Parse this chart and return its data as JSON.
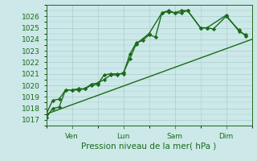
{
  "title": "Pression niveau de la mer( hPa )",
  "ylabel_values": [
    1017,
    1018,
    1019,
    1020,
    1021,
    1022,
    1023,
    1024,
    1025,
    1026
  ],
  "ylim": [
    1016.5,
    1026.8
  ],
  "xlim": [
    0,
    96
  ],
  "x_ticks": [
    12,
    36,
    60,
    84
  ],
  "x_tick_labels": [
    "Ven",
    "Lun",
    "Sam",
    "Dim"
  ],
  "bg_color": "#cce8e8",
  "grid_color": "#aacccc",
  "line_color": "#1a6b1a",
  "line1_x": [
    0,
    3,
    6,
    9,
    12,
    15,
    18,
    21,
    24,
    27,
    30,
    33,
    36,
    39,
    42,
    45,
    48,
    51,
    54,
    57,
    60,
    63,
    66,
    72,
    75,
    84,
    90,
    93
  ],
  "line1_y": [
    1017.2,
    1018.0,
    1018.1,
    1019.6,
    1019.6,
    1019.6,
    1019.7,
    1020.0,
    1020.1,
    1020.9,
    1021.0,
    1021.0,
    1021.0,
    1022.7,
    1023.7,
    1023.9,
    1024.4,
    1024.2,
    1026.3,
    1026.4,
    1026.3,
    1026.3,
    1026.5,
    1025.0,
    1025.0,
    1026.1,
    1024.7,
    1024.4
  ],
  "line2_x": [
    0,
    3,
    6,
    9,
    12,
    15,
    18,
    21,
    24,
    27,
    30,
    33,
    36,
    39,
    42,
    48,
    54,
    57,
    60,
    63,
    66,
    72,
    75,
    78,
    84,
    90,
    93
  ],
  "line2_y": [
    1017.5,
    1018.7,
    1018.8,
    1019.6,
    1019.6,
    1019.7,
    1019.7,
    1020.1,
    1020.2,
    1020.5,
    1020.9,
    1020.9,
    1021.1,
    1022.3,
    1023.6,
    1024.5,
    1026.3,
    1026.5,
    1026.3,
    1026.5,
    1026.5,
    1025.0,
    1025.0,
    1024.9,
    1026.0,
    1024.8,
    1024.3
  ],
  "trend_x": [
    0,
    96
  ],
  "trend_y": [
    1017.5,
    1024.0
  ],
  "marker": "D",
  "markersize": 2.2,
  "linewidth": 1.0,
  "tick_fontsize": 6.5,
  "xlabel_fontsize": 7.5
}
